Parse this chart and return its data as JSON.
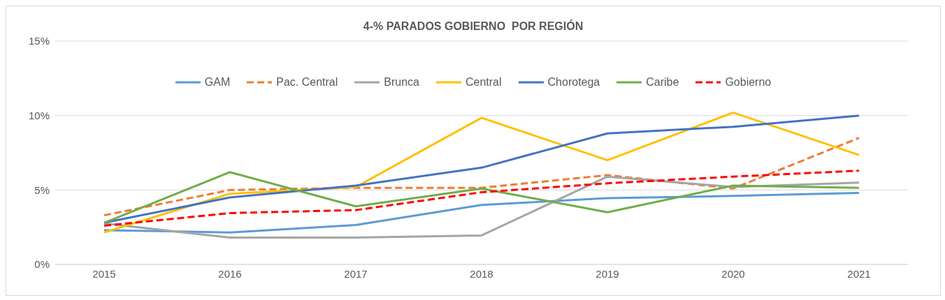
{
  "chart_data": {
    "type": "line",
    "title": "4-% PARADOS GOBIERNO  POR REGIÓN",
    "categories": [
      "2015",
      "2016",
      "2017",
      "2018",
      "2019",
      "2020",
      "2021"
    ],
    "series": [
      {
        "name": "GAM",
        "color": "#5b9bd5",
        "line_style": "solid",
        "values": [
          2.3,
          2.15,
          2.65,
          4.0,
          4.45,
          4.6,
          4.8
        ]
      },
      {
        "name": "Pac. Central",
        "color": "#ed7d31",
        "line_style": "dashed",
        "values": [
          3.3,
          5.0,
          5.15,
          5.15,
          6.0,
          5.1,
          8.5
        ]
      },
      {
        "name": "Brunca",
        "color": "#a5a5a5",
        "line_style": "solid",
        "values": [
          2.75,
          1.8,
          1.8,
          1.95,
          5.9,
          5.2,
          5.5
        ]
      },
      {
        "name": "Central",
        "color": "#ffc000",
        "line_style": "solid",
        "values": [
          2.15,
          4.75,
          5.2,
          9.85,
          7.0,
          10.2,
          7.35
        ]
      },
      {
        "name": "Chorotega",
        "color": "#4472c4",
        "line_style": "solid",
        "values": [
          2.8,
          4.5,
          5.3,
          6.5,
          8.8,
          9.25,
          10.0
        ]
      },
      {
        "name": "Caribe",
        "color": "#70ad47",
        "line_style": "solid",
        "values": [
          2.8,
          6.2,
          3.9,
          5.1,
          3.5,
          5.3,
          5.15
        ]
      },
      {
        "name": "Gobierno",
        "color": "#ff0000",
        "line_style": "dashed",
        "values": [
          2.6,
          3.45,
          3.65,
          4.85,
          5.45,
          5.9,
          6.3
        ]
      }
    ],
    "ylim": [
      0,
      15
    ],
    "yticks": [
      {
        "value": 0,
        "label": "0%"
      },
      {
        "value": 5,
        "label": "5%"
      },
      {
        "value": 10,
        "label": "10%"
      },
      {
        "value": 15,
        "label": "15%"
      }
    ],
    "grid": "y",
    "legend": "top",
    "marker": "none"
  }
}
